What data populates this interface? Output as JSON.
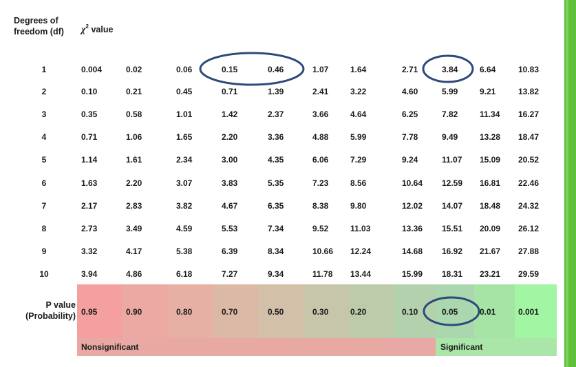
{
  "header": {
    "df_line1": "Degrees of",
    "df_line2": "freedom (df)",
    "chi_symbol": "χ",
    "chi_superscript": "2",
    "chi_rest": " value"
  },
  "table": {
    "df": [
      "1",
      "2",
      "3",
      "4",
      "5",
      "6",
      "7",
      "8",
      "9",
      "10"
    ],
    "rows": [
      [
        "0.004",
        "0.02",
        "0.06",
        "0.15",
        "0.46",
        "1.07",
        "1.64",
        "2.71",
        "3.84",
        "6.64",
        "10.83"
      ],
      [
        "0.10",
        "0.21",
        "0.45",
        "0.71",
        "1.39",
        "2.41",
        "3.22",
        "4.60",
        "5.99",
        "9.21",
        "13.82"
      ],
      [
        "0.35",
        "0.58",
        "1.01",
        "1.42",
        "2.37",
        "3.66",
        "4.64",
        "6.25",
        "7.82",
        "11.34",
        "16.27"
      ],
      [
        "0.71",
        "1.06",
        "1.65",
        "2.20",
        "3.36",
        "4.88",
        "5.99",
        "7.78",
        "9.49",
        "13.28",
        "18.47"
      ],
      [
        "1.14",
        "1.61",
        "2.34",
        "3.00",
        "4.35",
        "6.06",
        "7.29",
        "9.24",
        "11.07",
        "15.09",
        "20.52"
      ],
      [
        "1.63",
        "2.20",
        "3.07",
        "3.83",
        "5.35",
        "7.23",
        "8.56",
        "10.64",
        "12.59",
        "16.81",
        "22.46"
      ],
      [
        "2.17",
        "2.83",
        "3.82",
        "4.67",
        "6.35",
        "8.38",
        "9.80",
        "12.02",
        "14.07",
        "18.48",
        "24.32"
      ],
      [
        "2.73",
        "3.49",
        "4.59",
        "5.53",
        "7.34",
        "9.52",
        "11.03",
        "13.36",
        "15.51",
        "20.09",
        "26.12"
      ],
      [
        "3.32",
        "4.17",
        "5.38",
        "6.39",
        "8.34",
        "10.66",
        "12.24",
        "14.68",
        "16.92",
        "21.67",
        "27.88"
      ],
      [
        "3.94",
        "4.86",
        "6.18",
        "7.27",
        "9.34",
        "11.78",
        "13.44",
        "15.99",
        "18.31",
        "23.21",
        "29.59"
      ]
    ],
    "p_label_line1": "P value",
    "p_label_line2": "(Probability)",
    "p_values": [
      "0.95",
      "0.90",
      "0.80",
      "0.70",
      "0.50",
      "0.30",
      "0.20",
      "0.10",
      "0.05",
      "0.01",
      "0.001"
    ],
    "p_colors": [
      "#f4a0a0",
      "#eca9a3",
      "#e6b0a4",
      "#dcb9a6",
      "#d2c0a8",
      "#c7c6aa",
      "#bdcbab",
      "#b3d1ac",
      "#aad7ad",
      "#a6e4a6",
      "#a2f5a2"
    ],
    "nonsignificant_label": "Nonsignificant",
    "significant_label": "Significant"
  },
  "colors": {
    "ring": "#2c4a7a",
    "nonsignificant_bar": "#e8a8a4",
    "significant_bar": "#abe6a9",
    "accent_stripe": "#5fc03a"
  }
}
